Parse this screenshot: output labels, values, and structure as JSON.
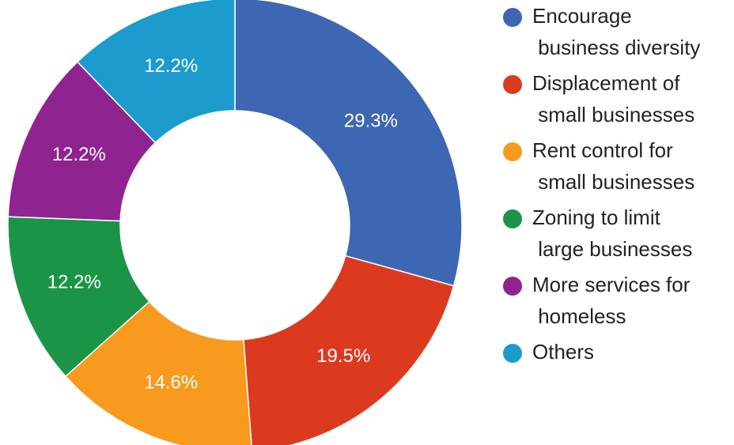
{
  "chart_data": {
    "type": "pie",
    "categories": [
      "Encourage business diversity",
      "Displacement of small businesses",
      "Rent control for small businesses",
      "Zoning to limit large businesses",
      "More services for homeless",
      "Others"
    ],
    "values": [
      29.3,
      19.5,
      14.6,
      12.2,
      12.2,
      12.2
    ],
    "value_labels": [
      "29.3%",
      "19.5%",
      "14.6%",
      "12.2%",
      "12.2%",
      "12.2%"
    ],
    "colors": [
      "#3d66b3",
      "#dc3a1f",
      "#f79a1e",
      "#1c9447",
      "#8f2490",
      "#1b9ccc"
    ],
    "donut": true,
    "legend": "right"
  }
}
